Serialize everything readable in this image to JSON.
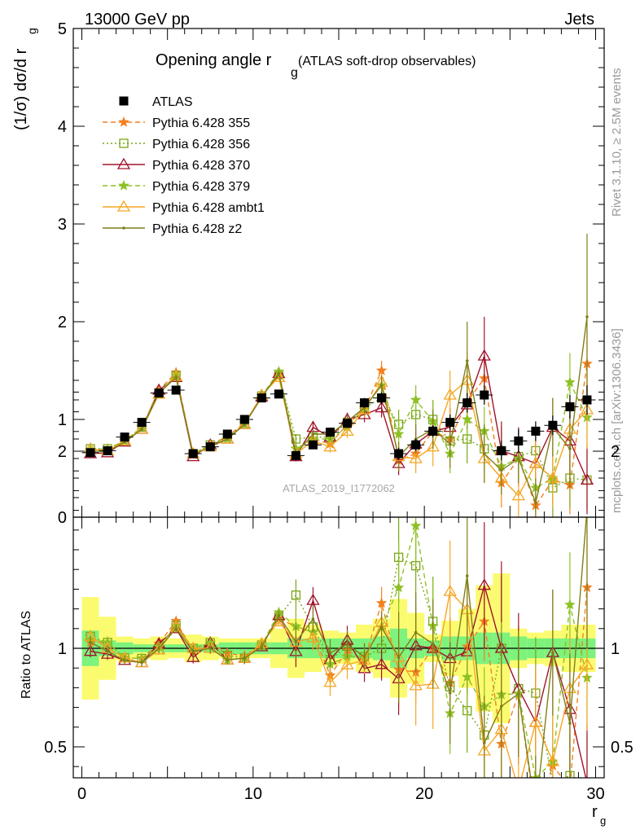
{
  "header": {
    "beam": "13000 GeV pp",
    "category": "Jets",
    "title_main": "Opening angle r",
    "title_sub": "g",
    "title_tail": " (ATLAS soft-drop observables)",
    "ylabel_main": "(1/σ) dσ/d r",
    "ylabel_sub": "g",
    "xlabel_main": "r",
    "xlabel_sub": "g",
    "ratio_ylabel": "Ratio to ATLAS",
    "side_text_1": "Rivet 3.1.10, ≥ 2.5M events",
    "side_text_2": "mcplots.cern.ch [arXiv:1306.3436]",
    "watermark": "ATLAS_2019_I1772062"
  },
  "chart_data": {
    "type": "line",
    "bins": [
      0.5,
      1.5,
      2.5,
      3.5,
      4.5,
      5.5,
      6.5,
      7.5,
      8.5,
      9.5,
      10.5,
      11.5,
      12.5,
      13.5,
      14.5,
      15.5,
      16.5,
      17.5,
      18.5,
      19.5,
      20.5,
      21.5,
      22.5,
      23.5,
      24.5,
      25.5,
      26.5,
      27.5,
      28.5,
      29.5
    ],
    "xlim": [
      -0.5,
      30.5
    ],
    "ylim": [
      0,
      5
    ],
    "yticks": [
      0,
      1,
      2,
      3,
      4,
      5
    ],
    "xticks": [
      0,
      10,
      20,
      30
    ],
    "ratio_ylim": [
      0.35,
      2.35
    ],
    "ratio_yticks": [
      0.5,
      1,
      2
    ],
    "data": {
      "name": "ATLAS",
      "color": "#000000",
      "values": [
        0.66,
        0.68,
        0.82,
        0.97,
        1.27,
        1.3,
        0.65,
        0.72,
        0.85,
        1.0,
        1.22,
        1.26,
        0.63,
        0.74,
        0.87,
        0.96,
        1.17,
        1.22,
        0.65,
        0.74,
        0.88,
        0.97,
        1.17,
        1.25,
        0.68,
        0.78,
        0.88,
        0.94,
        1.13,
        1.2
      ],
      "errors": [
        0.02,
        0.02,
        0.02,
        0.02,
        0.03,
        0.03,
        0.02,
        0.02,
        0.02,
        0.03,
        0.03,
        0.03,
        0.03,
        0.03,
        0.03,
        0.04,
        0.05,
        0.06,
        0.06,
        0.06,
        0.06,
        0.08,
        0.1,
        0.1,
        0.1,
        0.12,
        0.1,
        0.1,
        0.12,
        0.15
      ]
    },
    "band": {
      "stat_rel": [
        0.09,
        0.04,
        0.03,
        0.02,
        0.02,
        0.02,
        0.02,
        0.02,
        0.03,
        0.03,
        0.03,
        0.03,
        0.05,
        0.05,
        0.05,
        0.05,
        0.05,
        0.06,
        0.1,
        0.05,
        0.04,
        0.06,
        0.06,
        0.08,
        0.08,
        0.06,
        0.05,
        0.05,
        0.05,
        0.05
      ],
      "total_rel": [
        0.26,
        0.16,
        0.06,
        0.05,
        0.06,
        0.05,
        0.07,
        0.06,
        0.05,
        0.05,
        0.05,
        0.1,
        0.15,
        0.12,
        0.09,
        0.08,
        0.12,
        0.15,
        0.25,
        0.18,
        0.07,
        0.14,
        0.2,
        0.32,
        0.38,
        0.1,
        0.08,
        0.09,
        0.12,
        0.12
      ],
      "stat_color": "#7df27d",
      "total_color": "#fbfb70"
    },
    "series": [
      {
        "name": "Pythia 6.428 355",
        "color": "#f47f20",
        "marker": "star",
        "dash": "6,4",
        "values": [
          0.68,
          0.7,
          0.78,
          0.92,
          1.3,
          1.48,
          0.64,
          0.74,
          0.83,
          0.96,
          1.24,
          1.45,
          0.7,
          0.8,
          0.75,
          0.95,
          1.1,
          1.5,
          0.58,
          0.65,
          0.88,
          0.8,
          1.18,
          1.42,
          0.35,
          0.6,
          0.12,
          0.38,
          0.33,
          1.57
        ],
        "errors": [
          0.02,
          0.02,
          0.02,
          0.02,
          0.03,
          0.03,
          0.02,
          0.02,
          0.02,
          0.03,
          0.03,
          0.03,
          0.05,
          0.05,
          0.05,
          0.06,
          0.08,
          0.1,
          0.12,
          0.12,
          0.15,
          0.18,
          0.2,
          0.25,
          0.25,
          0.25,
          0.2,
          0.25,
          0.3,
          0.35
        ]
      },
      {
        "name": "Pythia 6.428 356",
        "color": "#7aa619",
        "marker": "square",
        "dash": "2,3",
        "values": [
          0.7,
          0.7,
          0.78,
          0.92,
          1.26,
          1.45,
          0.65,
          0.74,
          0.82,
          0.95,
          1.24,
          1.46,
          0.8,
          0.82,
          0.82,
          0.97,
          1.12,
          1.22,
          0.95,
          1.05,
          1.0,
          0.78,
          0.8,
          0.7,
          0.68,
          0.62,
          0.68,
          0.3,
          0.4,
          0.38
        ],
        "errors": [
          0.02,
          0.02,
          0.02,
          0.02,
          0.03,
          0.03,
          0.02,
          0.02,
          0.02,
          0.03,
          0.03,
          0.03,
          0.05,
          0.05,
          0.06,
          0.07,
          0.08,
          0.1,
          0.15,
          0.15,
          0.2,
          0.2,
          0.25,
          0.25,
          0.25,
          0.25,
          0.25,
          0.3,
          0.3,
          0.3
        ]
      },
      {
        "name": "Pythia 6.428 370",
        "color": "#a0132a",
        "marker": "triangle",
        "dash": "",
        "values": [
          0.65,
          0.66,
          0.77,
          0.9,
          1.3,
          1.43,
          0.62,
          0.74,
          0.8,
          0.95,
          1.23,
          1.47,
          0.62,
          0.92,
          0.82,
          1.0,
          1.05,
          1.12,
          0.55,
          0.75,
          0.88,
          0.92,
          1.15,
          1.65,
          0.68,
          0.62,
          0.55,
          0.92,
          0.78,
          0.38
        ],
        "errors": [
          0.02,
          0.02,
          0.02,
          0.02,
          0.03,
          0.03,
          0.02,
          0.02,
          0.02,
          0.03,
          0.03,
          0.03,
          0.05,
          0.05,
          0.06,
          0.07,
          0.08,
          0.1,
          0.12,
          0.15,
          0.18,
          0.2,
          0.25,
          0.4,
          0.3,
          0.3,
          0.25,
          0.3,
          0.35,
          0.35
        ]
      },
      {
        "name": "Pythia 6.428 379",
        "color": "#8ec025",
        "marker": "star",
        "dash": "6,4",
        "values": [
          0.69,
          0.7,
          0.78,
          0.92,
          1.28,
          1.45,
          0.65,
          0.74,
          0.8,
          0.95,
          1.24,
          1.49,
          0.7,
          0.8,
          0.8,
          0.92,
          1.12,
          1.35,
          0.85,
          1.2,
          0.98,
          0.65,
          1.0,
          0.88,
          0.52,
          0.6,
          0.3,
          0.4,
          1.38,
          1.02
        ],
        "errors": [
          0.02,
          0.02,
          0.02,
          0.02,
          0.03,
          0.03,
          0.02,
          0.02,
          0.02,
          0.03,
          0.03,
          0.03,
          0.05,
          0.05,
          0.06,
          0.07,
          0.08,
          0.1,
          0.15,
          0.15,
          0.2,
          0.2,
          0.25,
          0.25,
          0.25,
          0.25,
          0.25,
          0.3,
          0.3,
          0.3
        ]
      },
      {
        "name": "Pythia 6.428 ambt1",
        "color": "#f5a623",
        "marker": "triangle",
        "dash": "",
        "values": [
          0.7,
          0.68,
          0.78,
          0.9,
          1.26,
          1.44,
          0.65,
          0.72,
          0.8,
          0.95,
          1.25,
          1.43,
          0.65,
          0.78,
          0.72,
          0.88,
          1.1,
          1.38,
          0.62,
          0.6,
          0.72,
          1.25,
          1.4,
          0.6,
          0.4,
          0.22,
          0.55,
          0.4,
          0.9,
          1.1
        ],
        "errors": [
          0.02,
          0.02,
          0.02,
          0.02,
          0.03,
          0.03,
          0.02,
          0.02,
          0.02,
          0.03,
          0.03,
          0.03,
          0.05,
          0.05,
          0.06,
          0.07,
          0.08,
          0.1,
          0.15,
          0.15,
          0.2,
          0.25,
          0.3,
          0.25,
          0.25,
          0.25,
          0.25,
          0.3,
          0.3,
          0.4
        ]
      },
      {
        "name": "Pythia 6.428 z2",
        "color": "#7f7f1a",
        "marker": "dot",
        "dash": "",
        "values": [
          0.68,
          0.67,
          0.77,
          0.9,
          1.27,
          1.43,
          0.64,
          0.72,
          0.8,
          0.95,
          1.23,
          1.47,
          0.65,
          0.85,
          0.85,
          0.98,
          1.12,
          1.35,
          0.62,
          0.8,
          0.9,
          0.75,
          1.6,
          0.65,
          0.48,
          0.6,
          0.15,
          0.92,
          0.7,
          2.05
        ],
        "errors": [
          0.02,
          0.02,
          0.02,
          0.02,
          0.03,
          0.03,
          0.02,
          0.02,
          0.02,
          0.03,
          0.03,
          0.03,
          0.05,
          0.05,
          0.06,
          0.07,
          0.08,
          0.1,
          0.15,
          0.15,
          0.2,
          0.25,
          0.4,
          0.3,
          0.25,
          0.25,
          0.25,
          0.3,
          0.4,
          0.85
        ]
      }
    ]
  }
}
